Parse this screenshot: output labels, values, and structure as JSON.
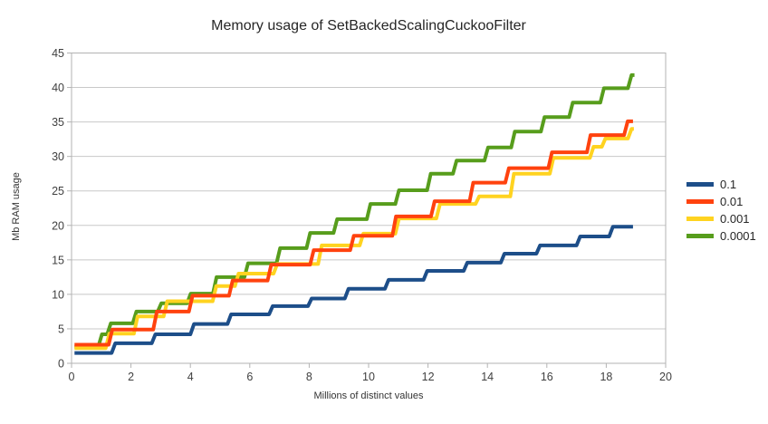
{
  "title": "Memory usage of SetBackedScalingCuckooFilter",
  "axes": {
    "y_label": "Mb RAM usage",
    "x_label": "Millions of distinct values"
  },
  "legend": {
    "position": "right",
    "items": [
      {
        "label": "0.1",
        "color": "#1d4e89"
      },
      {
        "label": "0.01",
        "color": "#ff420e"
      },
      {
        "label": "0.001",
        "color": "#ffd320"
      },
      {
        "label": "0.0001",
        "color": "#579d1c"
      }
    ]
  },
  "colors": {
    "background": "#ffffff",
    "plot_border": "#b3b3b3",
    "gridline": "#c8c8c8",
    "tick": "#b3b3b3",
    "tick_text": "#404040",
    "title_text": "#262626"
  },
  "chart_data": {
    "type": "line",
    "subtype": "step",
    "title": "Memory usage of SetBackedScalingCuckooFilter",
    "xlabel": "Millions of distinct values",
    "ylabel": "Mb RAM usage",
    "xlim": [
      0,
      20
    ],
    "ylim": [
      0,
      45
    ],
    "x_ticks": [
      0,
      2,
      4,
      6,
      8,
      10,
      12,
      14,
      16,
      18,
      20
    ],
    "y_ticks": [
      0,
      5,
      10,
      15,
      20,
      25,
      30,
      35,
      40,
      45
    ],
    "grid": "horizontal",
    "legend_position": "right",
    "point_format": "[x_from, level] — series holds this Mb level from x_from until the next breakpoint",
    "draw_order": [
      0,
      3,
      2,
      1
    ],
    "series": [
      {
        "name": "0.1",
        "color": "#1d4e89",
        "end_x": 18.9,
        "points": [
          [
            0.1,
            1.5
          ],
          [
            1.35,
            2.9
          ],
          [
            2.7,
            4.2
          ],
          [
            4.0,
            5.7
          ],
          [
            5.25,
            7.1
          ],
          [
            6.65,
            8.3
          ],
          [
            7.96,
            9.4
          ],
          [
            9.2,
            10.8
          ],
          [
            10.55,
            12.1
          ],
          [
            11.85,
            13.4
          ],
          [
            13.2,
            14.6
          ],
          [
            14.45,
            15.9
          ],
          [
            15.65,
            17.1
          ],
          [
            17.0,
            18.4
          ],
          [
            18.1,
            19.8
          ]
        ]
      },
      {
        "name": "0.01",
        "color": "#ff420e",
        "end_x": 18.9,
        "points": [
          [
            0.1,
            2.7
          ],
          [
            1.25,
            4.9
          ],
          [
            2.75,
            7.5
          ],
          [
            3.95,
            9.8
          ],
          [
            5.3,
            12.0
          ],
          [
            6.6,
            14.3
          ],
          [
            8.03,
            16.4
          ],
          [
            9.38,
            18.5
          ],
          [
            10.8,
            21.3
          ],
          [
            12.1,
            23.5
          ],
          [
            13.4,
            26.2
          ],
          [
            14.6,
            28.3
          ],
          [
            16.05,
            30.6
          ],
          [
            17.35,
            33.1
          ],
          [
            18.6,
            35.1
          ]
        ]
      },
      {
        "name": "0.001",
        "color": "#ffd320",
        "end_x": 18.93,
        "points": [
          [
            0.1,
            2.2
          ],
          [
            1.15,
            4.3
          ],
          [
            2.1,
            6.8
          ],
          [
            3.1,
            9.0
          ],
          [
            4.75,
            11.2
          ],
          [
            5.5,
            13.0
          ],
          [
            6.8,
            14.4
          ],
          [
            8.3,
            17.1
          ],
          [
            9.7,
            18.8
          ],
          [
            10.9,
            21.0
          ],
          [
            12.28,
            23.1
          ],
          [
            13.6,
            24.2
          ],
          [
            14.77,
            27.5
          ],
          [
            16.1,
            29.8
          ],
          [
            17.45,
            31.4
          ],
          [
            17.85,
            32.6
          ],
          [
            18.73,
            34.0
          ]
        ]
      },
      {
        "name": "0.0001",
        "color": "#579d1c",
        "end_x": 18.95,
        "points": [
          [
            0.1,
            2.4
          ],
          [
            0.9,
            4.2
          ],
          [
            1.2,
            5.8
          ],
          [
            2.06,
            7.5
          ],
          [
            2.9,
            8.7
          ],
          [
            3.89,
            10.1
          ],
          [
            4.76,
            12.5
          ],
          [
            5.82,
            14.5
          ],
          [
            6.9,
            16.7
          ],
          [
            7.91,
            18.9
          ],
          [
            8.82,
            20.9
          ],
          [
            9.94,
            23.1
          ],
          [
            10.9,
            25.1
          ],
          [
            11.97,
            27.5
          ],
          [
            12.84,
            29.4
          ],
          [
            13.9,
            31.3
          ],
          [
            14.8,
            33.6
          ],
          [
            15.8,
            35.7
          ],
          [
            16.75,
            37.8
          ],
          [
            17.8,
            39.9
          ],
          [
            18.73,
            41.8
          ]
        ]
      }
    ]
  }
}
